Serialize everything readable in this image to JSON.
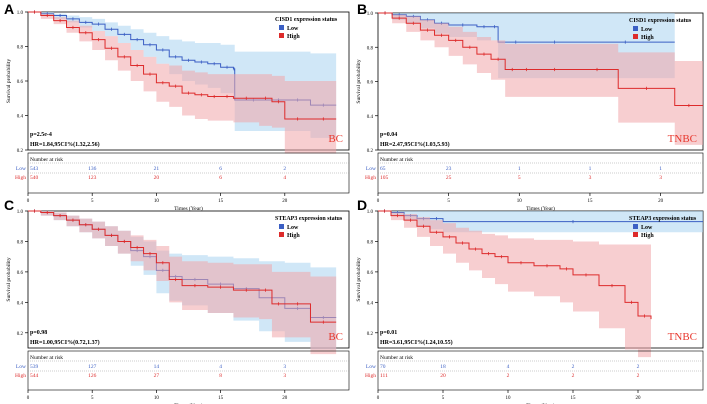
{
  "colors": {
    "low": "#3b5fc4",
    "high": "#dd2b2b",
    "low_band": "#a9d3f0",
    "high_band": "#f1a6aa",
    "tag": "#e8392f"
  },
  "common": {
    "ylabel": "Survival probability",
    "xlabel": "Times (Year)",
    "risk_title": "Number at risk",
    "low_label": "Low",
    "high_label": "High",
    "yticks": [
      "0.2",
      "0.4",
      "0.6",
      "0.8",
      "1.0"
    ],
    "xticks": [
      "0",
      "5",
      "10",
      "15",
      "20"
    ]
  },
  "chart_data": [
    {
      "panel": "A",
      "type": "line",
      "title": "CISD1 expression status",
      "tag": "BC",
      "pvalue": "p=2.5e-4",
      "hr": "HR=1.84,95CI%(1.32,2.56)",
      "xlim": [
        0,
        25
      ],
      "ylim": [
        0.2,
        1.0
      ],
      "series": [
        {
          "name": "Low",
          "x": [
            0,
            1,
            2,
            3,
            4,
            5,
            6,
            7,
            8,
            9,
            10,
            11,
            12,
            13,
            14,
            15,
            16,
            16.1,
            19,
            20,
            22,
            24
          ],
          "y": [
            1.0,
            0.99,
            0.98,
            0.96,
            0.94,
            0.93,
            0.9,
            0.87,
            0.84,
            0.81,
            0.78,
            0.74,
            0.72,
            0.71,
            0.7,
            0.68,
            0.67,
            0.49,
            0.49,
            0.49,
            0.46,
            0.46
          ],
          "ci_upper": [
            1.0,
            1.0,
            0.99,
            0.98,
            0.97,
            0.96,
            0.94,
            0.92,
            0.9,
            0.88,
            0.86,
            0.84,
            0.83,
            0.82,
            0.82,
            0.81,
            0.81,
            0.77,
            0.77,
            0.77,
            0.76,
            0.76
          ],
          "ci_lower": [
            1.0,
            0.98,
            0.96,
            0.94,
            0.91,
            0.89,
            0.86,
            0.82,
            0.78,
            0.74,
            0.7,
            0.64,
            0.6,
            0.58,
            0.56,
            0.53,
            0.51,
            0.31,
            0.31,
            0.31,
            0.27,
            0.27
          ]
        },
        {
          "name": "High",
          "x": [
            0,
            1,
            2,
            3,
            4,
            5,
            6,
            7,
            8,
            9,
            10,
            11,
            12,
            13,
            14,
            15,
            16,
            18,
            19,
            20,
            22,
            24
          ],
          "y": [
            1.0,
            0.98,
            0.95,
            0.91,
            0.88,
            0.84,
            0.79,
            0.74,
            0.69,
            0.64,
            0.59,
            0.57,
            0.53,
            0.52,
            0.51,
            0.51,
            0.5,
            0.5,
            0.48,
            0.38,
            0.38,
            0.38
          ],
          "ci_upper": [
            1.0,
            0.99,
            0.97,
            0.95,
            0.92,
            0.89,
            0.86,
            0.82,
            0.78,
            0.74,
            0.7,
            0.69,
            0.66,
            0.65,
            0.64,
            0.64,
            0.64,
            0.64,
            0.63,
            0.6,
            0.6,
            0.6
          ],
          "ci_lower": [
            1.0,
            0.96,
            0.93,
            0.88,
            0.83,
            0.78,
            0.72,
            0.66,
            0.6,
            0.54,
            0.48,
            0.45,
            0.4,
            0.38,
            0.37,
            0.37,
            0.36,
            0.34,
            0.33,
            0.18,
            0.18,
            0.18
          ]
        }
      ],
      "risk": {
        "low": [
          "543",
          "136",
          "21",
          "6",
          "2"
        ],
        "high": [
          "540",
          "123",
          "20",
          "6",
          "4"
        ]
      }
    },
    {
      "panel": "B",
      "type": "line",
      "title": "CISD1 expression status",
      "tag": "TNBC",
      "pvalue": "p=0.04",
      "hr": "HR=2.47,95CI%(1.03,5.93)",
      "xlim": [
        0,
        23
      ],
      "ylim": [
        0.2,
        1.0
      ],
      "series": [
        {
          "name": "Low",
          "x": [
            0,
            1,
            2,
            3,
            4,
            5,
            7,
            8,
            8.5,
            11,
            14,
            21
          ],
          "y": [
            1.0,
            0.99,
            0.98,
            0.96,
            0.94,
            0.93,
            0.92,
            0.92,
            0.83,
            0.83,
            0.83,
            0.83
          ],
          "ci_upper": [
            1.0,
            1.0,
            1.0,
            1.0,
            1.0,
            1.0,
            1.0,
            1.0,
            1.0,
            1.0,
            1.0,
            1.0
          ],
          "ci_lower": [
            1.0,
            0.96,
            0.94,
            0.91,
            0.88,
            0.86,
            0.84,
            0.84,
            0.62,
            0.62,
            0.62,
            0.62
          ]
        },
        {
          "name": "High",
          "x": [
            0,
            1,
            2,
            3,
            4,
            5,
            6,
            7,
            8,
            9,
            10,
            11,
            14,
            17,
            21,
            23
          ],
          "y": [
            1.0,
            0.97,
            0.94,
            0.9,
            0.87,
            0.84,
            0.8,
            0.76,
            0.73,
            0.67,
            0.67,
            0.67,
            0.67,
            0.56,
            0.46,
            0.46
          ],
          "ci_upper": [
            1.0,
            0.99,
            0.98,
            0.96,
            0.94,
            0.92,
            0.89,
            0.86,
            0.84,
            0.82,
            0.82,
            0.82,
            0.82,
            0.77,
            0.72,
            0.72
          ],
          "ci_lower": [
            1.0,
            0.94,
            0.89,
            0.84,
            0.8,
            0.75,
            0.7,
            0.65,
            0.61,
            0.51,
            0.51,
            0.51,
            0.51,
            0.36,
            0.23,
            0.23
          ]
        }
      ],
      "risk": {
        "low": [
          "65",
          "23",
          "1",
          "1",
          "1"
        ],
        "high": [
          "105",
          "25",
          "5",
          "3",
          "3"
        ]
      }
    },
    {
      "panel": "C",
      "type": "line",
      "title": "STEAP3 expression status",
      "tag": "BC",
      "pvalue": "p=0.98",
      "hr": "HR=1.00,95CI%(0.72,1.37)",
      "xlim": [
        0,
        25
      ],
      "ylim": [
        0.1,
        1.0
      ],
      "series": [
        {
          "name": "Low",
          "x": [
            0,
            1,
            2,
            3,
            4,
            5,
            6,
            7,
            8,
            9,
            10,
            11,
            12,
            14,
            16,
            18,
            20,
            22,
            24
          ],
          "y": [
            1.0,
            0.99,
            0.97,
            0.94,
            0.91,
            0.88,
            0.84,
            0.8,
            0.74,
            0.7,
            0.61,
            0.57,
            0.55,
            0.52,
            0.49,
            0.43,
            0.36,
            0.3,
            0.3
          ],
          "ci_upper": [
            1.0,
            1.0,
            0.99,
            0.97,
            0.95,
            0.93,
            0.9,
            0.87,
            0.83,
            0.8,
            0.74,
            0.72,
            0.71,
            0.7,
            0.69,
            0.67,
            0.66,
            0.63,
            0.63
          ],
          "ci_lower": [
            1.0,
            0.97,
            0.94,
            0.9,
            0.86,
            0.82,
            0.77,
            0.72,
            0.64,
            0.58,
            0.46,
            0.41,
            0.38,
            0.33,
            0.28,
            0.21,
            0.14,
            0.09,
            0.09
          ]
        },
        {
          "name": "High",
          "x": [
            0,
            1,
            2,
            3,
            4,
            5,
            6,
            7,
            8,
            9,
            10,
            11,
            12,
            14,
            16,
            18,
            19,
            20,
            22,
            24
          ],
          "y": [
            1.0,
            0.99,
            0.97,
            0.94,
            0.91,
            0.88,
            0.84,
            0.8,
            0.76,
            0.72,
            0.66,
            0.55,
            0.51,
            0.5,
            0.48,
            0.48,
            0.39,
            0.39,
            0.27,
            0.27
          ],
          "ci_upper": [
            1.0,
            1.0,
            0.99,
            0.97,
            0.95,
            0.93,
            0.9,
            0.87,
            0.84,
            0.81,
            0.77,
            0.7,
            0.67,
            0.66,
            0.65,
            0.65,
            0.6,
            0.6,
            0.57,
            0.57
          ],
          "ci_lower": [
            1.0,
            0.97,
            0.94,
            0.9,
            0.86,
            0.82,
            0.77,
            0.72,
            0.67,
            0.61,
            0.54,
            0.4,
            0.35,
            0.33,
            0.3,
            0.29,
            0.17,
            0.17,
            0.06,
            0.06
          ]
        }
      ],
      "risk": {
        "low": [
          "539",
          "127",
          "14",
          "4",
          "3"
        ],
        "high": [
          "544",
          "126",
          "27",
          "8",
          "3"
        ]
      }
    },
    {
      "panel": "D",
      "type": "line",
      "title": "STEAP3 expression status",
      "tag": "TNBC",
      "pvalue": "p=0.01",
      "hr": "HR=3.61,95CI%(1.24,10.55)",
      "xlim": [
        0,
        25
      ],
      "ylim": [
        0.1,
        1.0
      ],
      "series": [
        {
          "name": "Low",
          "x": [
            0,
            1,
            2,
            3,
            4,
            5,
            25
          ],
          "y": [
            1.0,
            0.99,
            0.97,
            0.95,
            0.95,
            0.93,
            0.93
          ],
          "ci_upper": [
            1.0,
            1.0,
            1.0,
            1.0,
            1.0,
            1.0,
            1.0
          ],
          "ci_lower": [
            1.0,
            0.97,
            0.94,
            0.9,
            0.88,
            0.86,
            0.86
          ]
        },
        {
          "name": "High",
          "x": [
            0,
            1,
            2,
            3,
            4,
            5,
            6,
            7,
            8,
            9,
            10,
            12,
            14,
            15,
            17,
            19,
            20,
            21
          ],
          "y": [
            1.0,
            0.97,
            0.94,
            0.9,
            0.86,
            0.83,
            0.79,
            0.75,
            0.72,
            0.7,
            0.66,
            0.64,
            0.62,
            0.58,
            0.51,
            0.4,
            0.31,
            0.29
          ],
          "ci_upper": [
            1.0,
            0.99,
            0.98,
            0.96,
            0.94,
            0.92,
            0.89,
            0.87,
            0.85,
            0.84,
            0.82,
            0.81,
            0.81,
            0.8,
            0.78,
            0.78,
            0.78,
            0.78
          ],
          "ci_lower": [
            1.0,
            0.94,
            0.89,
            0.83,
            0.77,
            0.72,
            0.66,
            0.61,
            0.56,
            0.52,
            0.47,
            0.44,
            0.4,
            0.34,
            0.23,
            0.09,
            0.04,
            0.03
          ]
        }
      ],
      "risk": {
        "low": [
          "70",
          "18",
          "4",
          "2",
          "2"
        ],
        "high": [
          "111",
          "20",
          "2",
          "2",
          "2"
        ]
      }
    }
  ]
}
